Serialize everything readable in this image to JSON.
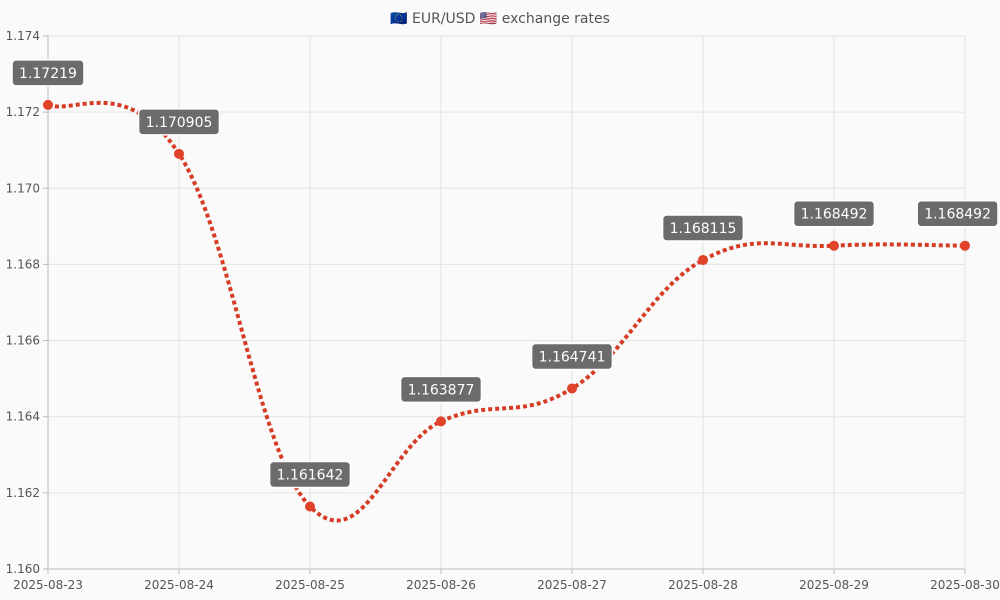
{
  "chart_data": {
    "type": "line",
    "title": "🇪🇺 EUR/USD 🇺🇸 exchange rates",
    "xlabel": "",
    "ylabel": "",
    "categories": [
      "2025-08-23",
      "2025-08-24",
      "2025-08-25",
      "2025-08-26",
      "2025-08-27",
      "2025-08-28",
      "2025-08-29",
      "2025-08-30"
    ],
    "series": [
      {
        "values": [
          1.17219,
          1.170905,
          1.161642,
          1.163877,
          1.164741,
          1.168115,
          1.168492,
          1.168492
        ],
        "data_labels": [
          "1.17219",
          "1.170905",
          "1.161642",
          "1.163877",
          "1.164741",
          "1.168115",
          "1.168492",
          "1.168492"
        ]
      }
    ],
    "ylim": [
      1.16,
      1.174
    ],
    "yticks": [
      "1.160",
      "1.162",
      "1.164",
      "1.166",
      "1.168",
      "1.170",
      "1.172",
      "1.174"
    ],
    "grid": true,
    "line_style": "dotted",
    "colors": {
      "line": "#d63c24",
      "point": "#e0422a",
      "label_bg": "#6b6b6b",
      "label_text": "#ffffff",
      "grid": "#e3e3e3",
      "axis": "#bbbbbb",
      "text": "#555555",
      "background": "#fafafa"
    }
  }
}
